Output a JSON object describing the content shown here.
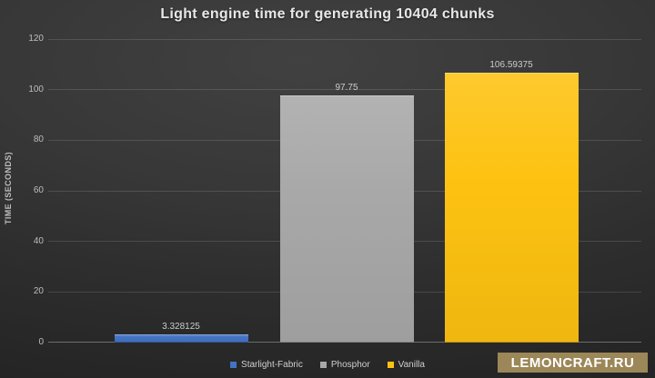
{
  "chart_data": {
    "type": "bar",
    "title": "Light engine time for generating 10404 chunks",
    "xlabel": "",
    "ylabel": "TIME (SECONDS)",
    "ylim": [
      0,
      120
    ],
    "yticks": [
      0,
      20,
      40,
      60,
      80,
      100,
      120
    ],
    "grid": true,
    "legend_position": "bottom",
    "categories": [
      "Starlight-Fabric",
      "Phosphor",
      "Vanilla"
    ],
    "values": [
      3.328125,
      97.75,
      106.59375
    ],
    "bar_colors": [
      "#4472c4",
      "#a8a8a8",
      "#fdc211"
    ],
    "data_labels": [
      "3.328125",
      "97.75",
      "106.59375"
    ]
  },
  "watermark": {
    "label": "LEMONCRAFT.RU",
    "background": "#9c8758",
    "text_color": "#ffffff"
  }
}
